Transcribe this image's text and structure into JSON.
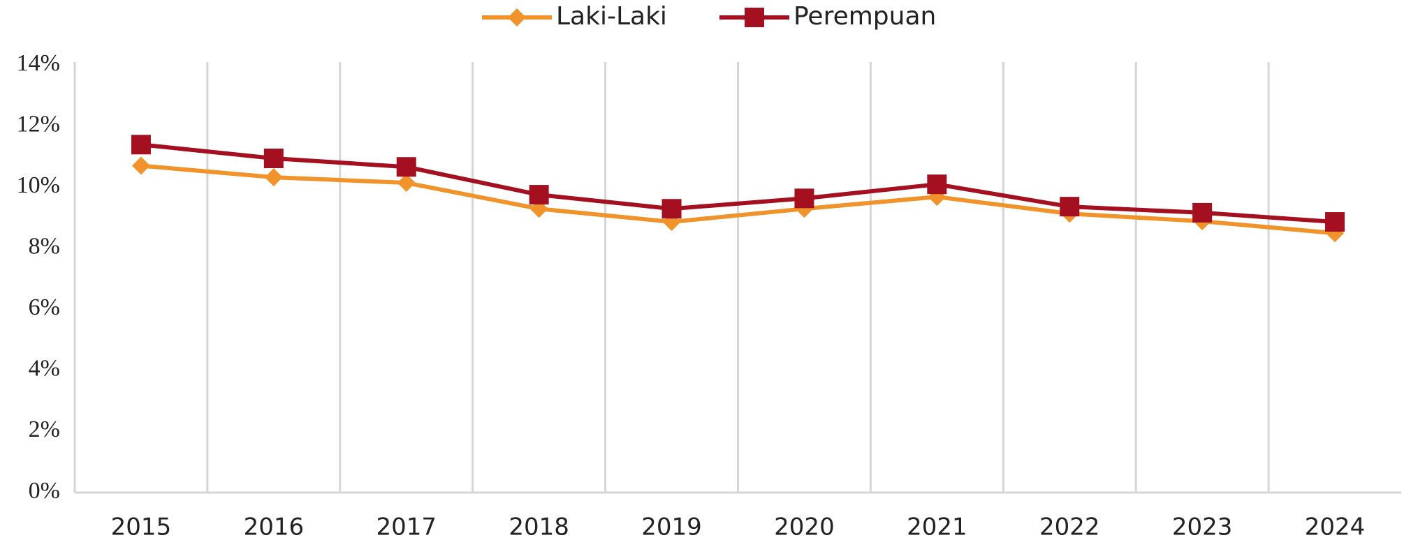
{
  "chart_data": {
    "type": "line",
    "categories": [
      "2015",
      "2016",
      "2017",
      "2018",
      "2019",
      "2020",
      "2021",
      "2022",
      "2023",
      "2024"
    ],
    "series": [
      {
        "name": "Laki-Laki",
        "color": "#f0932b",
        "marker": "diamond",
        "values": [
          10.7,
          10.32,
          10.14,
          9.29,
          8.86,
          9.29,
          9.68,
          9.13,
          8.88,
          8.49
        ]
      },
      {
        "name": "Perempuan",
        "color": "#a51020",
        "marker": "square",
        "values": [
          11.39,
          10.94,
          10.66,
          9.75,
          9.29,
          9.63,
          10.09,
          9.36,
          9.16,
          8.86
        ]
      }
    ],
    "ylim": [
      0,
      14
    ],
    "yticks": [
      {
        "value": 0,
        "label": "0%"
      },
      {
        "value": 2,
        "label": "2%"
      },
      {
        "value": 4,
        "label": "4%"
      },
      {
        "value": 6,
        "label": "6%"
      },
      {
        "value": 8,
        "label": "8%"
      },
      {
        "value": 10,
        "label": "10%"
      },
      {
        "value": 12,
        "label": "12%"
      },
      {
        "value": 14,
        "label": "14%"
      }
    ],
    "legend": "top"
  }
}
